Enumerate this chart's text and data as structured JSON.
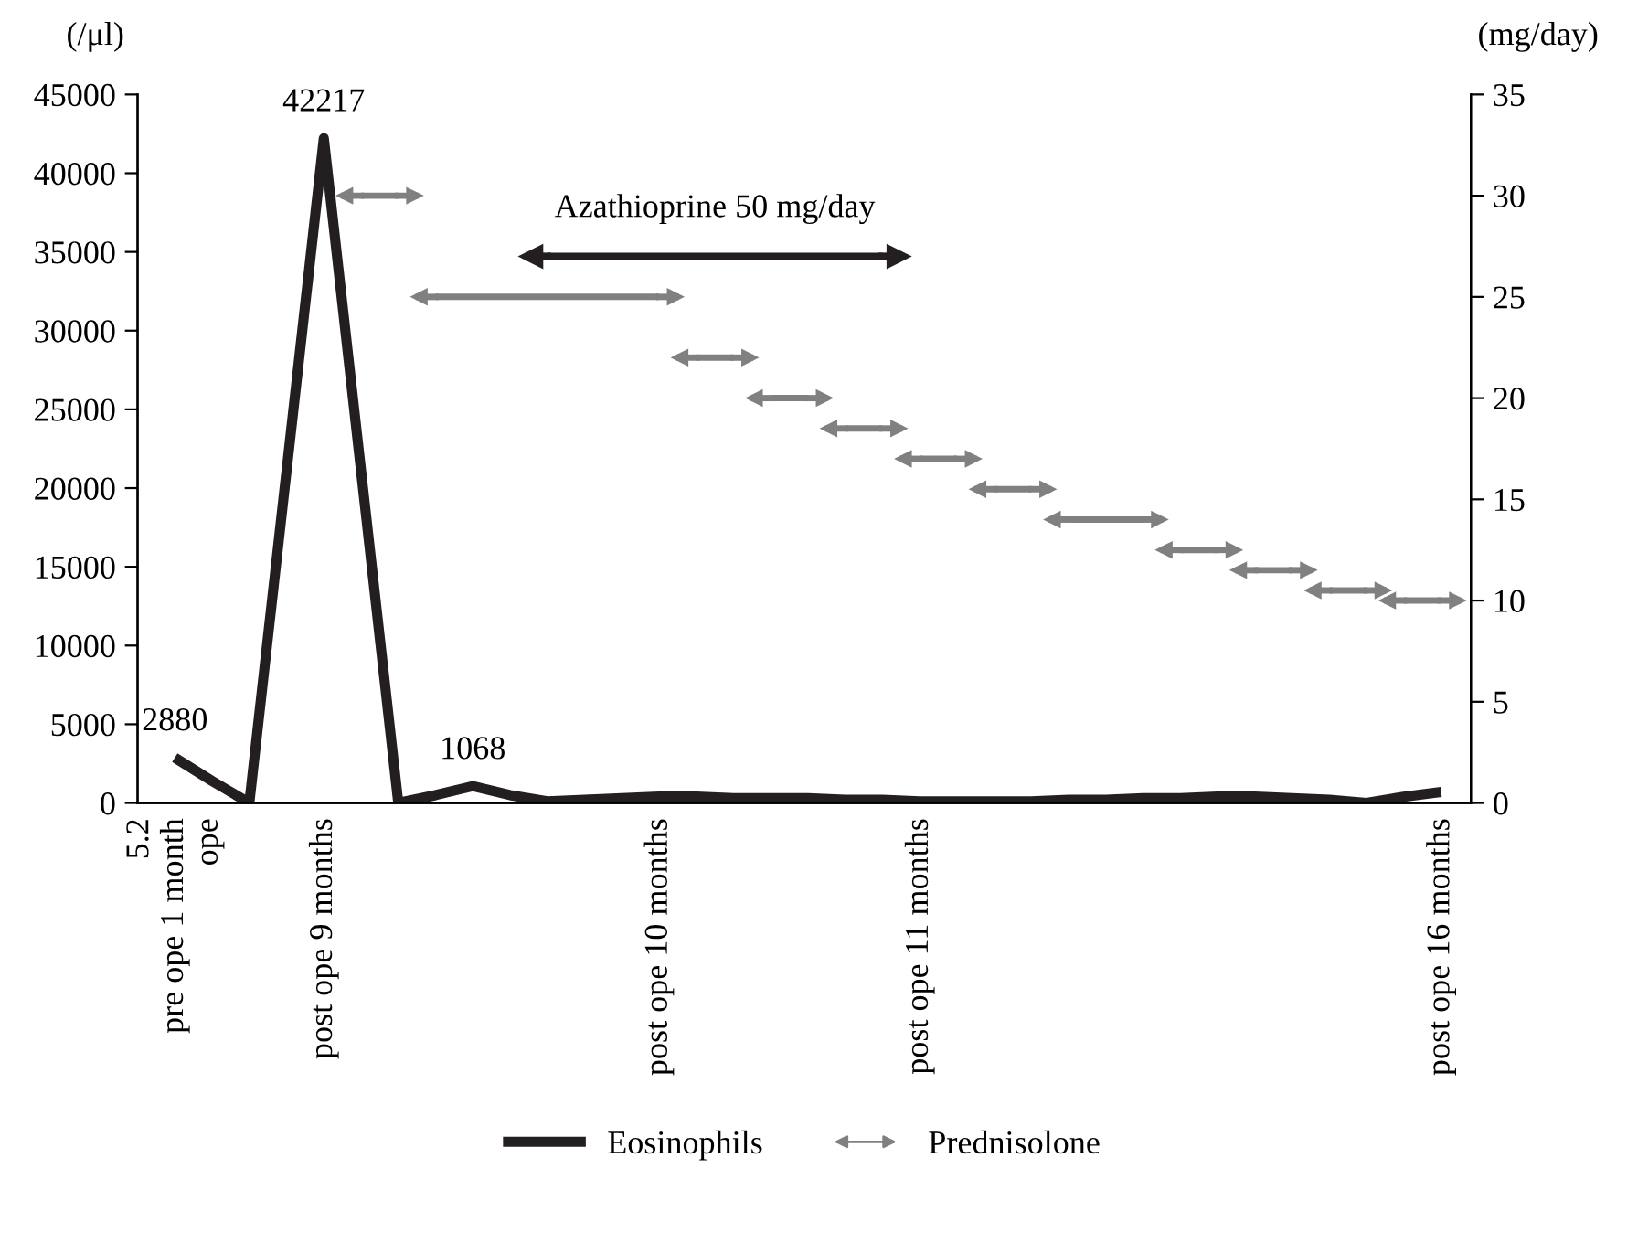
{
  "chart_data": {
    "type": "line",
    "ylabel": "(/μl)",
    "y2label": "(mg/day)",
    "categories": [
      "5.2\npre ope 1 month\nope",
      null,
      null,
      null,
      "post ope 9 months",
      null,
      null,
      null,
      null,
      null,
      null,
      null,
      null,
      "post ope 10 months",
      null,
      null,
      null,
      null,
      null,
      null,
      "post ope 11 months",
      null,
      null,
      null,
      null,
      null,
      null,
      null,
      null,
      null,
      null,
      null,
      null,
      null,
      "post ope 16 months"
    ],
    "ylim": [
      0,
      45000
    ],
    "yticks": [
      0,
      5000,
      10000,
      15000,
      20000,
      25000,
      30000,
      35000,
      40000,
      45000
    ],
    "y2lim": [
      0,
      35
    ],
    "y2ticks": [
      0,
      5,
      10,
      15,
      20,
      25,
      30,
      35
    ],
    "legend": "bottom",
    "marker": "none",
    "series": [
      {
        "name": "Eosinophils",
        "color": "#231f20",
        "values": [
          2880,
          1400,
          0,
          21100,
          42217,
          21100,
          0,
          500,
          1068,
          500,
          100,
          200,
          300,
          400,
          400,
          300,
          300,
          300,
          200,
          200,
          100,
          100,
          100,
          100,
          200,
          200,
          300,
          300,
          400,
          400,
          300,
          200,
          0,
          400,
          700
        ],
        "value_labels": [
          "2880",
          null,
          null,
          null,
          "42217",
          null,
          null,
          null,
          "1068",
          null,
          null,
          null,
          null,
          null,
          null,
          null,
          null,
          null,
          null,
          null,
          null,
          null,
          null,
          null,
          null,
          null,
          null,
          null,
          null,
          null,
          null,
          null,
          null,
          null,
          null
        ]
      },
      {
        "name": "Prednisolone",
        "type": "step",
        "axis": "y2",
        "color": "#808080",
        "values": [
          null,
          null,
          null,
          null,
          null,
          30,
          30,
          25,
          25,
          25,
          25,
          25,
          25,
          25,
          22,
          22,
          20,
          20,
          18.5,
          18.5,
          17,
          17,
          15.5,
          15.5,
          14,
          14,
          14,
          12.5,
          12.5,
          11.5,
          11.5,
          10.5,
          10.5,
          10,
          10
        ]
      },
      {
        "name": "Azathioprine 50 mg/day",
        "type": "step",
        "axis": "y2",
        "color": "#231f20",
        "values": [
          null,
          null,
          null,
          null,
          null,
          null,
          null,
          null,
          null,
          null,
          27,
          27,
          27,
          27,
          27,
          27,
          27,
          27,
          27,
          27,
          null,
          null,
          null,
          null,
          null,
          null,
          null,
          null,
          null,
          null,
          null,
          null,
          null,
          null,
          null
        ]
      }
    ]
  }
}
